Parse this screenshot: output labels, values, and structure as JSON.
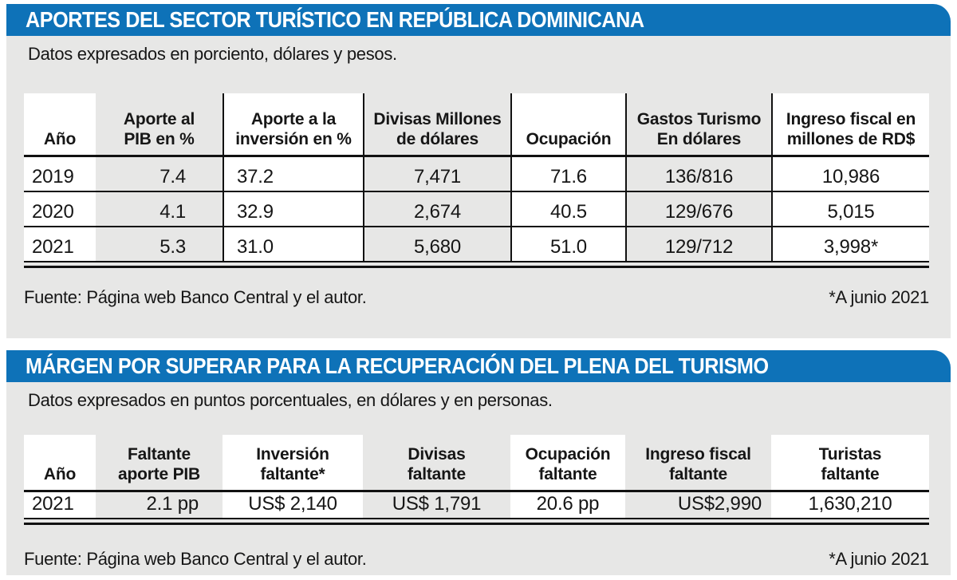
{
  "page": {
    "accent_blue": "#0e72b8",
    "panel_background": "#e7e7e6",
    "line_color": "#111111"
  },
  "chart_data": [
    {
      "type": "table",
      "title": "APORTES DEL SECTOR TURÍSTICO EN REPÚBLICA DOMINICANA",
      "subtitle": "Datos expresados en porciento, dólares y pesos.",
      "columns": [
        "Año",
        "Aporte al\nPIB en %",
        "Aporte a la\ninversión en %",
        "Divisas Millones\nde dólares",
        "Ocupación",
        "Gastos Turismo\nEn dólares",
        "Ingreso fiscal en\nmillones de RD$"
      ],
      "rows": [
        [
          "2019",
          "7.4",
          "37.2",
          "7,471",
          "71.6",
          "136/816",
          "10,986"
        ],
        [
          "2020",
          "4.1",
          "32.9",
          "2,674",
          "40.5",
          "129/676",
          "5,015"
        ],
        [
          "2021",
          "5.3",
          "31.0",
          "5,680",
          "51.0",
          "129/712",
          "3,998*"
        ]
      ],
      "source": "Fuente: Página web Banco Central y el autor.",
      "footnote": "*A junio 2021"
    },
    {
      "type": "table",
      "title": "MÁRGEN POR SUPERAR PARA LA RECUPERACIÓN DEL PLENA DEL TURISMO",
      "subtitle": "Datos expresados en puntos porcentuales, en dólares y en personas.",
      "columns": [
        "Año",
        "Faltante\naporte PIB",
        "Inversión\nfaltante*",
        "Divisas\nfaltante",
        "Ocupación\nfaltante",
        "Ingreso fiscal\nfaltante",
        "Turistas\nfaltante"
      ],
      "rows": [
        [
          "2021",
          "2.1 pp",
          "US$ 2,140",
          "US$ 1,791",
          "20.6 pp",
          "US$2,990",
          "1,630,210"
        ]
      ],
      "source": "Fuente: Página web Banco Central y el autor.",
      "footnote": "*A junio 2021"
    }
  ]
}
